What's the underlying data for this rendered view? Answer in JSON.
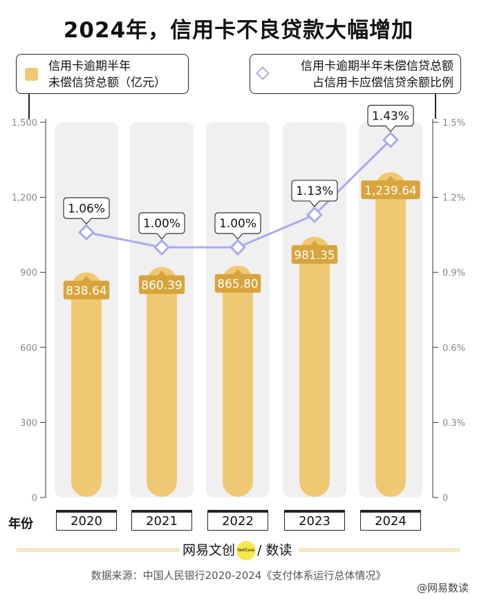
{
  "title": "2024年，信用卡不良贷款大幅增加",
  "legend": {
    "bar_line1": "信用卡逾期半年",
    "bar_line2": "未偿信贷总额（亿元）",
    "line_line1": "信用卡逾期半年未偿信贷总额",
    "line_line2": "占信用卡应偿信贷余额比例"
  },
  "year_axis_label": "年份",
  "brand": {
    "name_left": "网易文创",
    "dot_text": "NetEase",
    "name_right": "/ 数读"
  },
  "source": "数据来源：中国人民银行2020-2024《支付体系运行总体情况》",
  "watermark": "@网易数读",
  "colors": {
    "bar": "#f0c874",
    "label_bg": "#d8a43c",
    "line": "#a8aaf0",
    "track": "#f0f0f0"
  },
  "chart_data": {
    "type": "bar",
    "categories": [
      "2020",
      "2021",
      "2022",
      "2023",
      "2024"
    ],
    "series": [
      {
        "values": [
          838.64,
          860.39,
          865.8,
          981.35,
          1239.64
        ],
        "labels": [
          "838.64",
          "860.39",
          "865.80",
          "981.35",
          "1,239.64"
        ],
        "axis": "left"
      },
      {
        "type": "line",
        "values": [
          1.06,
          1.0,
          1.0,
          1.13,
          1.43
        ],
        "labels": [
          "1.06%",
          "1.00%",
          "1.00%",
          "1.13%",
          "1.43%"
        ],
        "axis": "right"
      }
    ],
    "y_left": {
      "ylim": [
        0,
        1500
      ],
      "ticks": [
        "0",
        "300",
        "600",
        "900",
        "1,200",
        "1,500"
      ]
    },
    "y_right": {
      "ylim": [
        0,
        1.5
      ],
      "ticks": [
        "0",
        "0.3%",
        "0.6%",
        "0.9%",
        "1.2%",
        "1.5%"
      ]
    }
  }
}
